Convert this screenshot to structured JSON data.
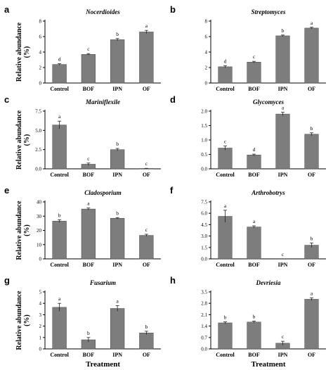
{
  "ylabel": "Relative abundance (%)",
  "xlabel": "Treatment",
  "categories": [
    "Control",
    "BOF",
    "IPN",
    "OF"
  ],
  "colors": {
    "bar": "#7d7d7d",
    "edge": "#4a4a4a",
    "axis": "#000000"
  },
  "chart_data": [
    {
      "type": "bar",
      "panel": "a",
      "title": "Nocerdioides",
      "categories": [
        "Control",
        "BOF",
        "IPN",
        "OF"
      ],
      "values": [
        2.4,
        3.7,
        5.6,
        6.6
      ],
      "errors": [
        0.1,
        0.1,
        0.15,
        0.2
      ],
      "significance": [
        "d",
        "c",
        "b",
        "a"
      ],
      "ylim": [
        0,
        8
      ],
      "ticks": [
        0,
        2,
        4,
        6,
        8
      ],
      "tick_labels": [
        "0",
        "2",
        "4",
        "6",
        "8"
      ]
    },
    {
      "type": "bar",
      "panel": "b",
      "title": "Streptomyces",
      "categories": [
        "Control",
        "BOF",
        "IPN",
        "OF"
      ],
      "values": [
        2.1,
        2.7,
        6.1,
        7.1
      ],
      "errors": [
        0.15,
        0.1,
        0.1,
        0.1
      ],
      "significance": [
        "d",
        "c",
        "b",
        "a"
      ],
      "ylim": [
        0,
        8
      ],
      "ticks": [
        0,
        2,
        4,
        6,
        8
      ],
      "tick_labels": [
        "0",
        "2",
        "4",
        "6",
        "8"
      ]
    },
    {
      "type": "bar",
      "panel": "c",
      "title": "Mariniflexile",
      "categories": [
        "Control",
        "BOF",
        "IPN",
        "OF"
      ],
      "values": [
        5.7,
        0.6,
        2.5,
        0.05
      ],
      "errors": [
        0.5,
        0.15,
        0.15,
        0.02
      ],
      "significance": [
        "a",
        "c",
        "b",
        "c"
      ],
      "ylim": [
        0,
        7.5
      ],
      "ticks": [
        0,
        2.5,
        5.0,
        7.5
      ],
      "tick_labels": [
        "0.0",
        "2.5",
        "5.0",
        "7.5"
      ]
    },
    {
      "type": "bar",
      "panel": "d",
      "title": "Glycomyces",
      "categories": [
        "Control",
        "BOF",
        "IPN",
        "OF"
      ],
      "values": [
        0.72,
        0.48,
        1.9,
        1.2
      ],
      "errors": [
        0.07,
        0.03,
        0.06,
        0.05
      ],
      "significance": [
        "c",
        "d",
        "a",
        "b"
      ],
      "ylim": [
        0,
        2.0
      ],
      "ticks": [
        0,
        0.5,
        1.0,
        1.5,
        2.0
      ],
      "tick_labels": [
        "0.0",
        "0.5",
        "1.0",
        "1.5",
        "2.0"
      ]
    },
    {
      "type": "bar",
      "panel": "e",
      "title": "Cladosporium",
      "categories": [
        "Control",
        "BOF",
        "IPN",
        "OF"
      ],
      "values": [
        26.5,
        35,
        28.5,
        16.5
      ],
      "errors": [
        1.0,
        0.7,
        0.5,
        0.8
      ],
      "significance": [
        "b",
        "a",
        "b",
        "c"
      ],
      "ylim": [
        0,
        40
      ],
      "ticks": [
        0,
        10,
        20,
        30,
        40
      ],
      "tick_labels": [
        "0",
        "10",
        "20",
        "30",
        "40"
      ]
    },
    {
      "type": "bar",
      "panel": "f",
      "title": "Arthrobotrys",
      "categories": [
        "Control",
        "BOF",
        "IPN",
        "OF"
      ],
      "values": [
        5.6,
        4.2,
        0,
        1.8
      ],
      "errors": [
        0.8,
        0.15,
        0,
        0.3
      ],
      "significance": [
        "a",
        "a",
        "c",
        "b"
      ],
      "ylim": [
        0,
        7.5
      ],
      "ticks": [
        0,
        1.5,
        3.0,
        4.5,
        6.0,
        7.5
      ],
      "tick_labels": [
        "0.0",
        "1.5",
        "3.0",
        "4.5",
        "6.0",
        "7.5"
      ]
    },
    {
      "type": "bar",
      "panel": "g",
      "title": "Fusarium",
      "categories": [
        "Control",
        "BOF",
        "IPN",
        "OF"
      ],
      "values": [
        3.65,
        0.8,
        3.55,
        1.4
      ],
      "errors": [
        0.35,
        0.2,
        0.25,
        0.15
      ],
      "significance": [
        "a",
        "b",
        "a",
        "b"
      ],
      "ylim": [
        0,
        5
      ],
      "ticks": [
        0,
        1,
        2,
        3,
        4,
        5
      ],
      "tick_labels": [
        "0",
        "1",
        "2",
        "3",
        "4",
        "5"
      ]
    },
    {
      "type": "bar",
      "panel": "h",
      "title": "Devriesia",
      "categories": [
        "Control",
        "BOF",
        "IPN",
        "OF"
      ],
      "values": [
        1.6,
        1.65,
        0.35,
        3.05
      ],
      "errors": [
        0.06,
        0.06,
        0.12,
        0.08
      ],
      "significance": [
        "b",
        "b",
        "c",
        "a"
      ],
      "ylim": [
        0,
        3.5
      ],
      "ticks": [
        0,
        0.7,
        1.4,
        2.1,
        2.8,
        3.5
      ],
      "tick_labels": [
        "0.0",
        "0.7",
        "1.4",
        "2.1",
        "2.8",
        "3.5"
      ]
    }
  ]
}
